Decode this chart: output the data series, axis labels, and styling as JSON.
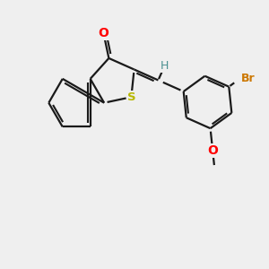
{
  "background_color": "#efefef",
  "bond_color": "#1a1a1a",
  "bond_width": 1.6,
  "O_color": "#ff0000",
  "S_color": "#b8b800",
  "Br_color": "#cc7700",
  "H_color": "#4a9090",
  "font_size": 9.0,
  "fig_size": [
    3.0,
    3.0
  ],
  "dpi": 100,
  "xlim": [
    0,
    10
  ],
  "ylim": [
    0,
    10
  ]
}
